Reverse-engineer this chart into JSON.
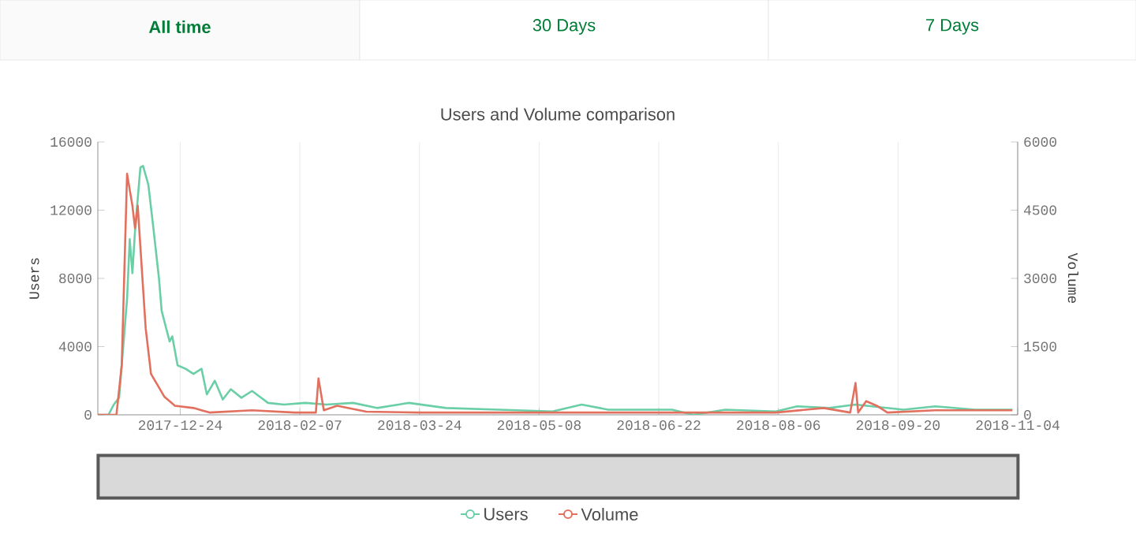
{
  "chart_data": {
    "type": "line",
    "title": "Users and Volume comparison",
    "ylabel": "Users",
    "y2label": "Volume",
    "annotations": [
      "All time",
      "30 Days",
      "7 Days"
    ],
    "xlim": [
      "2017-11-23",
      "2018-11-04"
    ],
    "xticks": [
      "2017-12-24",
      "2018-02-07",
      "2018-03-24",
      "2018-05-08",
      "2018-06-22",
      "2018-08-06",
      "2018-09-20",
      "2018-11-04"
    ],
    "ylim": [
      0,
      16000
    ],
    "yticks": [
      0,
      4000,
      8000,
      12000,
      16000
    ],
    "y2lim": [
      0,
      6000
    ],
    "y2ticks": [
      0,
      1500,
      3000,
      4500,
      6000
    ],
    "grid": "x",
    "legend": "bottom",
    "series": [
      {
        "name": "Users",
        "color": "#6acfa6",
        "x": [
          "2017-11-23",
          "2017-11-27",
          "2017-11-29",
          "2017-12-01",
          "2017-12-04",
          "2017-12-05",
          "2017-12-06",
          "2017-12-07",
          "2017-12-09",
          "2017-12-10",
          "2017-12-12",
          "2017-12-14",
          "2017-12-16",
          "2017-12-17",
          "2017-12-20",
          "2017-12-21",
          "2017-12-23",
          "2017-12-26",
          "2017-12-29",
          "2018-01-01",
          "2018-01-03",
          "2018-01-06",
          "2018-01-09",
          "2018-01-12",
          "2018-01-16",
          "2018-01-20",
          "2018-01-26",
          "2018-02-01",
          "2018-02-09",
          "2018-02-17",
          "2018-02-27",
          "2018-03-08",
          "2018-03-20",
          "2018-04-03",
          "2018-04-23",
          "2018-05-13",
          "2018-05-24",
          "2018-06-03",
          "2018-06-27",
          "2018-07-05",
          "2018-07-17",
          "2018-08-05",
          "2018-08-13",
          "2018-08-25",
          "2018-09-04",
          "2018-09-22",
          "2018-10-04",
          "2018-10-19",
          "2018-11-02"
        ],
        "values": [
          0,
          0,
          600,
          1000,
          6800,
          10300,
          8300,
          10800,
          14500,
          14600,
          13500,
          10800,
          8000,
          6100,
          4300,
          4600,
          2900,
          2700,
          2400,
          2700,
          1200,
          2000,
          900,
          1500,
          1000,
          1400,
          700,
          600,
          700,
          600,
          700,
          400,
          700,
          400,
          300,
          200,
          600,
          300,
          300,
          0,
          300,
          200,
          500,
          400,
          600,
          300,
          500,
          300,
          300
        ]
      },
      {
        "name": "Volume",
        "color": "#e2705e",
        "axis": "y2",
        "x": [
          "2017-11-23",
          "2017-11-30",
          "2017-12-02",
          "2017-12-04",
          "2017-12-06",
          "2017-12-07",
          "2017-12-08",
          "2017-12-09",
          "2017-12-11",
          "2017-12-13",
          "2017-12-15",
          "2017-12-18",
          "2017-12-22",
          "2017-12-29",
          "2018-01-04",
          "2018-01-20",
          "2018-02-05",
          "2018-02-13",
          "2018-02-14",
          "2018-02-16",
          "2018-02-21",
          "2018-03-04",
          "2018-03-24",
          "2018-05-03",
          "2018-06-07",
          "2018-08-05",
          "2018-08-23",
          "2018-09-02",
          "2018-09-04",
          "2018-09-05",
          "2018-09-08",
          "2018-09-12",
          "2018-09-16",
          "2018-10-04",
          "2018-11-02"
        ],
        "values": [
          0,
          0,
          1100,
          5300,
          4600,
          4100,
          4600,
          3700,
          1900,
          900,
          700,
          400,
          200,
          150,
          50,
          100,
          50,
          50,
          800,
          100,
          200,
          70,
          50,
          50,
          50,
          50,
          150,
          50,
          700,
          50,
          300,
          200,
          50,
          100,
          100
        ]
      }
    ]
  }
}
